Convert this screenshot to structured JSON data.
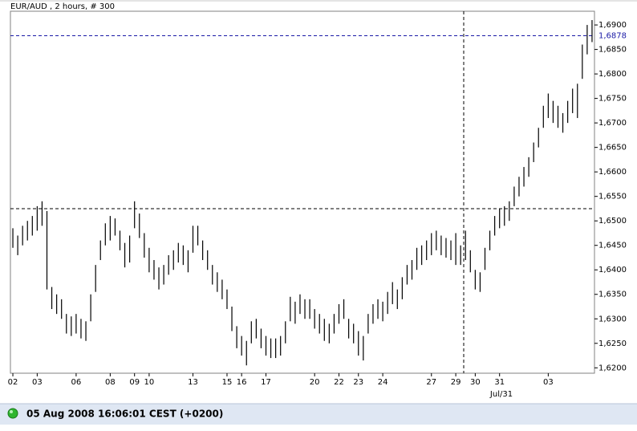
{
  "chart_data": {
    "type": "ohlc",
    "title": "EUR/AUD , 2 hours, # 300",
    "status": "05 Aug 2008 16:06:01  CEST (+0200)",
    "period_label": "Jul/31",
    "color": "#000000",
    "categories": [
      "02",
      null,
      null,
      null,
      null,
      "03",
      null,
      null,
      null,
      null,
      null,
      null,
      null,
      "06",
      null,
      null,
      null,
      null,
      null,
      null,
      "08",
      null,
      null,
      null,
      null,
      "09",
      null,
      null,
      "10",
      null,
      null,
      null,
      null,
      null,
      null,
      null,
      null,
      "13",
      null,
      null,
      null,
      null,
      null,
      null,
      "15",
      null,
      null,
      "16",
      null,
      null,
      null,
      null,
      "17",
      null,
      null,
      null,
      null,
      null,
      null,
      null,
      null,
      null,
      "20",
      null,
      null,
      null,
      null,
      "22",
      null,
      null,
      null,
      "23",
      null,
      null,
      null,
      null,
      "24",
      null,
      null,
      null,
      null,
      null,
      null,
      null,
      null,
      null,
      "27",
      null,
      null,
      null,
      null,
      "29",
      null,
      null,
      null,
      "30",
      null,
      null,
      null,
      null,
      "31",
      null,
      null,
      null,
      null,
      null,
      null,
      null,
      null,
      null,
      "03",
      null,
      null,
      null,
      null,
      null,
      null,
      null,
      null,
      null
    ],
    "high": [
      1.6485,
      1.647,
      1.649,
      1.65,
      1.651,
      1.653,
      1.654,
      1.652,
      1.6365,
      1.635,
      1.634,
      1.631,
      1.6305,
      1.631,
      1.63,
      1.6295,
      1.635,
      1.641,
      1.646,
      1.6495,
      1.651,
      1.6505,
      1.648,
      1.6455,
      1.647,
      1.654,
      1.6515,
      1.6475,
      1.6445,
      1.642,
      1.6405,
      1.641,
      1.643,
      1.644,
      1.6455,
      1.645,
      1.644,
      1.649,
      1.649,
      1.646,
      1.644,
      1.641,
      1.6395,
      1.638,
      1.636,
      1.6325,
      1.6285,
      1.6265,
      1.6255,
      1.6295,
      1.63,
      1.628,
      1.6265,
      1.626,
      1.626,
      1.6265,
      1.6295,
      1.6345,
      1.6335,
      1.635,
      1.634,
      1.634,
      1.632,
      1.631,
      1.63,
      1.629,
      1.631,
      1.633,
      1.634,
      1.63,
      1.629,
      1.6275,
      1.6265,
      1.631,
      1.633,
      1.634,
      1.6335,
      1.6355,
      1.6375,
      1.636,
      1.6385,
      1.641,
      1.642,
      1.6445,
      1.645,
      1.646,
      1.6475,
      1.648,
      1.647,
      1.6465,
      1.646,
      1.6475,
      1.645,
      1.648,
      1.644,
      1.64,
      1.6395,
      1.6445,
      1.648,
      1.651,
      1.6525,
      1.653,
      1.654,
      1.657,
      1.659,
      1.661,
      1.663,
      1.666,
      1.669,
      1.6735,
      1.676,
      1.6745,
      1.6735,
      1.672,
      1.6745,
      1.677,
      1.678,
      1.686,
      1.69,
      1.691
    ],
    "low": [
      1.6445,
      1.643,
      1.645,
      1.646,
      1.647,
      1.648,
      1.649,
      1.636,
      1.632,
      1.631,
      1.63,
      1.627,
      1.6265,
      1.627,
      1.626,
      1.6255,
      1.6295,
      1.6355,
      1.642,
      1.645,
      1.646,
      1.647,
      1.644,
      1.6405,
      1.6415,
      1.6485,
      1.6465,
      1.6425,
      1.6395,
      1.638,
      1.636,
      1.637,
      1.639,
      1.64,
      1.6415,
      1.641,
      1.6395,
      1.6435,
      1.645,
      1.642,
      1.64,
      1.637,
      1.6355,
      1.634,
      1.632,
      1.6275,
      1.624,
      1.6225,
      1.6205,
      1.625,
      1.626,
      1.624,
      1.6225,
      1.622,
      1.622,
      1.6225,
      1.625,
      1.6295,
      1.629,
      1.631,
      1.63,
      1.63,
      1.628,
      1.627,
      1.6255,
      1.625,
      1.627,
      1.629,
      1.63,
      1.626,
      1.625,
      1.6225,
      1.6215,
      1.627,
      1.629,
      1.63,
      1.6295,
      1.631,
      1.633,
      1.632,
      1.634,
      1.637,
      1.638,
      1.64,
      1.641,
      1.642,
      1.643,
      1.644,
      1.643,
      1.6425,
      1.642,
      1.641,
      1.641,
      1.642,
      1.6395,
      1.636,
      1.6355,
      1.64,
      1.644,
      1.647,
      1.6485,
      1.649,
      1.65,
      1.653,
      1.655,
      1.657,
      1.659,
      1.662,
      1.665,
      1.669,
      1.671,
      1.67,
      1.669,
      1.668,
      1.67,
      1.672,
      1.671,
      1.679,
      1.684,
      1.6865
    ],
    "ylim": [
      1.6189,
      1.6928
    ],
    "yticks": [
      {
        "value": 1.62,
        "label": "1,6200"
      },
      {
        "value": 1.625,
        "label": "1,6250"
      },
      {
        "value": 1.63,
        "label": "1,6300"
      },
      {
        "value": 1.635,
        "label": "1,6350"
      },
      {
        "value": 1.64,
        "label": "1,6400"
      },
      {
        "value": 1.645,
        "label": "1,6450"
      },
      {
        "value": 1.65,
        "label": "1,6500"
      },
      {
        "value": 1.655,
        "label": "1,6550"
      },
      {
        "value": 1.66,
        "label": "1,6600"
      },
      {
        "value": 1.665,
        "label": "1,6650"
      },
      {
        "value": 1.67,
        "label": "1,6700"
      },
      {
        "value": 1.675,
        "label": "1,6750"
      },
      {
        "value": 1.68,
        "label": "1,6800"
      },
      {
        "value": 1.685,
        "label": "1,6850"
      },
      {
        "value": 1.69,
        "label": "1,6900"
      }
    ],
    "hlines": [
      {
        "value": 1.6878,
        "label": "1,6878",
        "color": "#1a1aa6"
      },
      {
        "value": 1.6525,
        "color": "#000000"
      }
    ]
  }
}
